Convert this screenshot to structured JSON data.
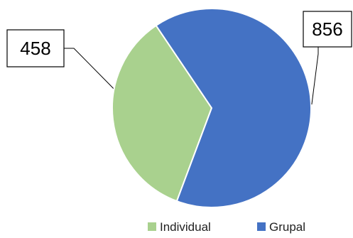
{
  "chart_data": {
    "type": "pie",
    "categories": [
      "Individual",
      "Grupal"
    ],
    "values": [
      458,
      856
    ],
    "colors": [
      "#a9d18e",
      "#4472c4"
    ],
    "data_labels": [
      "458",
      "856"
    ],
    "title": "",
    "legend_position": "bottom-right",
    "legend": [
      {
        "label": "Individual",
        "color": "#a9d18e"
      },
      {
        "label": "Grupal",
        "color": "#4472c4"
      }
    ]
  }
}
